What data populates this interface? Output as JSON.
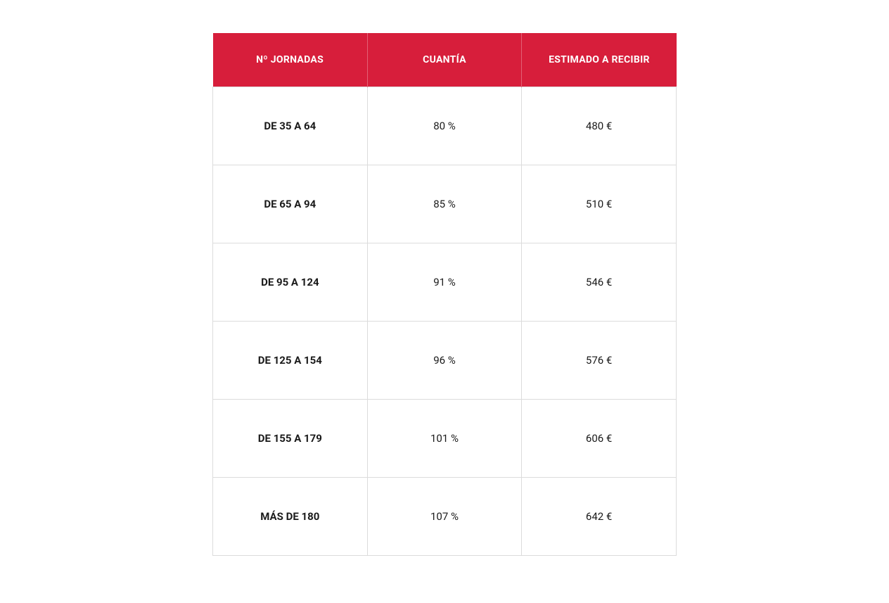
{
  "table": {
    "type": "table",
    "header_bg_color": "#d71e3b",
    "header_text_color": "#ffffff",
    "border_color": "#dcdcdc",
    "background_color": "#ffffff",
    "header_fontsize": 14,
    "body_fontsize": 15,
    "columns": [
      {
        "label": "Nº JORNADAS",
        "bold": true
      },
      {
        "label": "CUANTÍA",
        "bold": false
      },
      {
        "label": "ESTIMADO A RECIBIR",
        "bold": false
      }
    ],
    "rows": [
      {
        "jornadas": "DE 35 A 64",
        "cuantia": "80 %",
        "estimado": "480 €"
      },
      {
        "jornadas": "DE 65 A 94",
        "cuantia": "85 %",
        "estimado": "510 €"
      },
      {
        "jornadas": "DE 95 A 124",
        "cuantia": "91 %",
        "estimado": "546 €"
      },
      {
        "jornadas": "DE 125 A 154",
        "cuantia": "96 %",
        "estimado": "576 €"
      },
      {
        "jornadas": "DE 155 A 179",
        "cuantia": "101 %",
        "estimado": "606 €"
      },
      {
        "jornadas": "MÁS DE 180",
        "cuantia": "107 %",
        "estimado": "642 €"
      }
    ]
  }
}
